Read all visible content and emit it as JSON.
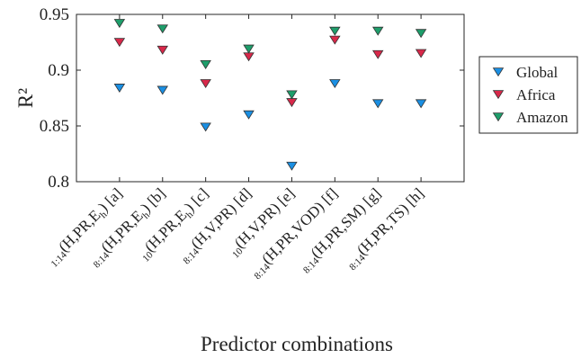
{
  "chart_data": {
    "type": "scatter",
    "marker": "triangle-down",
    "categories": [
      {
        "prefix": "1:14",
        "base": "(H,PR,E",
        "sub": "h",
        "rest": ") [a]"
      },
      {
        "prefix": "8:14",
        "base": "(H,PR,E",
        "sub": "h",
        "rest": ") [b]"
      },
      {
        "prefix": "10",
        "base": "(H,PR,E",
        "sub": "h",
        "rest": ") [c]"
      },
      {
        "prefix": "8:14",
        "base": "(H,V,PR) [d]",
        "sub": "",
        "rest": ""
      },
      {
        "prefix": "10",
        "base": "(H,V,PR) [e]",
        "sub": "",
        "rest": ""
      },
      {
        "prefix": "8:14",
        "base": "(H,PR,VOD) [f]",
        "sub": "",
        "rest": ""
      },
      {
        "prefix": "8:14",
        "base": "(H,PR,SM) [g]",
        "sub": "",
        "rest": ""
      },
      {
        "prefix": "8:14",
        "base": "(H,PR,TS) [h]",
        "sub": "",
        "rest": ""
      }
    ],
    "series": [
      {
        "name": "Global",
        "color": "#1a8fe3",
        "values": [
          0.884,
          0.882,
          0.849,
          0.86,
          0.814,
          0.888,
          0.87,
          0.87
        ]
      },
      {
        "name": "Africa",
        "color": "#d8284a",
        "values": [
          0.925,
          0.918,
          0.888,
          0.912,
          0.871,
          0.927,
          0.914,
          0.915
        ]
      },
      {
        "name": "Amazon",
        "color": "#1e9e6b",
        "values": [
          0.942,
          0.937,
          0.905,
          0.919,
          0.878,
          0.935,
          0.935,
          0.933
        ]
      }
    ],
    "ylabel": "R²",
    "xlabel": "Predictor combinations",
    "ylim": [
      0.8,
      0.95
    ],
    "yticks": [
      0.8,
      0.85,
      0.9,
      0.95
    ],
    "ytick_labels": [
      "0.8",
      "0.85",
      "0.9",
      "0.95"
    ],
    "grid": false,
    "legend_position": "right"
  }
}
